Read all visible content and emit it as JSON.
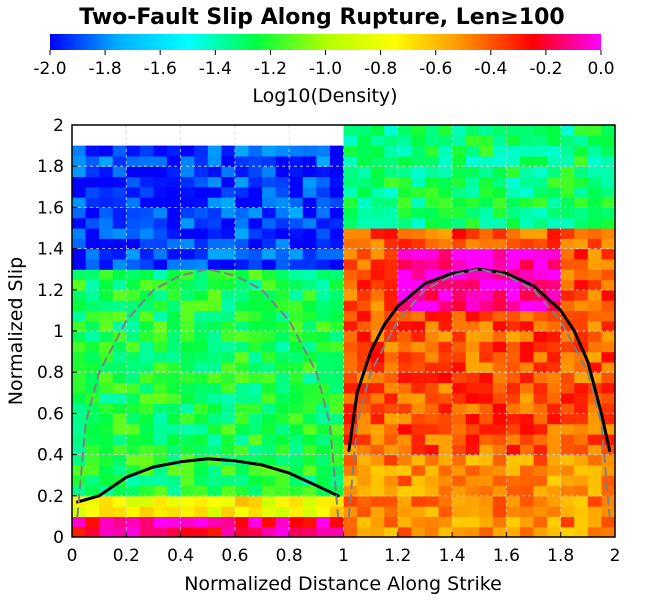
{
  "chart_data": {
    "type": "heatmap",
    "title": "Two-Fault Slip Along Rupture, Len≥100",
    "xlabel": "Normalized Distance Along Strike",
    "ylabel": "Normalized Slip",
    "xlim": [
      0,
      2
    ],
    "ylim": [
      0,
      2
    ],
    "xticks": [
      "0",
      "0.2",
      "0.4",
      "0.6",
      "0.8",
      "1",
      "1.2",
      "1.4",
      "1.6",
      "1.8",
      "2"
    ],
    "yticks": [
      "0",
      "0.2",
      "0.4",
      "0.6",
      "0.8",
      "1",
      "1.2",
      "1.4",
      "1.6",
      "1.8",
      "2"
    ],
    "grid": true,
    "colorbar": {
      "label": "Log10(Density)",
      "range": [
        -2.0,
        0.0
      ],
      "ticks": [
        "-2.0",
        "-1.8",
        "-1.6",
        "-1.4",
        "-1.2",
        "-1.0",
        "-0.8",
        "-0.6",
        "-0.4",
        "-0.2",
        "0.0"
      ],
      "colors": [
        "#0000ff",
        "#00b0ff",
        "#00ffff",
        "#00ff40",
        "#b0ff00",
        "#ffff00",
        "#ff9000",
        "#ff0000",
        "#ff00ff"
      ]
    },
    "density_regions": [
      {
        "x_range": [
          0,
          1
        ],
        "y_range": [
          0,
          0.1
        ],
        "log10_density": -0.15
      },
      {
        "x_range": [
          0,
          1
        ],
        "y_range": [
          0.1,
          0.2
        ],
        "log10_density": -0.75
      },
      {
        "x_range": [
          0,
          1
        ],
        "y_range": [
          0.2,
          1.3
        ],
        "log10_density": -1.25
      },
      {
        "x_range": [
          0,
          1
        ],
        "y_range": [
          1.3,
          1.9
        ],
        "log10_density": -1.9
      },
      {
        "x_range": [
          1,
          2
        ],
        "y_range": [
          0,
          0.4
        ],
        "log10_density": -0.5
      },
      {
        "x_range": [
          1,
          2
        ],
        "y_range": [
          0.4,
          1.5
        ],
        "log10_density": -0.4
      },
      {
        "x_range": [
          1.2,
          1.8
        ],
        "y_range": [
          1.1,
          1.4
        ],
        "log10_density": -0.05
      },
      {
        "x_range": [
          1,
          2
        ],
        "y_range": [
          1.5,
          2.0
        ],
        "log10_density": -1.3
      }
    ],
    "series": [
      {
        "x": [
          0.02,
          0.1,
          0.2,
          0.3,
          0.4,
          0.5,
          0.6,
          0.7,
          0.8,
          0.9,
          0.98
        ],
        "y": [
          0.17,
          0.2,
          0.29,
          0.34,
          0.365,
          0.38,
          0.37,
          0.35,
          0.31,
          0.25,
          0.2
        ],
        "style": "solid",
        "color": "#000000"
      },
      {
        "x": [
          1.02,
          1.05,
          1.1,
          1.15,
          1.2,
          1.3,
          1.4,
          1.5,
          1.6,
          1.7,
          1.8,
          1.85,
          1.9,
          1.95,
          1.98
        ],
        "y": [
          0.42,
          0.7,
          0.9,
          1.03,
          1.12,
          1.23,
          1.28,
          1.3,
          1.28,
          1.22,
          1.1,
          1.0,
          0.85,
          0.6,
          0.42
        ],
        "style": "solid",
        "color": "#000000"
      },
      {
        "x": [
          0.02,
          0.05,
          0.1,
          0.2,
          0.3,
          0.4,
          0.5,
          0.6,
          0.7,
          0.8,
          0.9,
          0.95,
          0.98
        ],
        "y": [
          0.1,
          0.55,
          0.8,
          1.05,
          1.2,
          1.27,
          1.3,
          1.27,
          1.2,
          1.05,
          0.8,
          0.55,
          0.1
        ],
        "style": "dashed",
        "color": "#808080"
      },
      {
        "x": [
          1.02,
          1.05,
          1.1,
          1.2,
          1.3,
          1.4,
          1.5,
          1.6,
          1.7,
          1.8,
          1.9,
          1.95,
          1.98
        ],
        "y": [
          0.1,
          0.55,
          0.8,
          1.05,
          1.2,
          1.27,
          1.3,
          1.27,
          1.2,
          1.05,
          0.8,
          0.55,
          0.1
        ],
        "style": "dashed",
        "color": "#808080"
      }
    ]
  }
}
